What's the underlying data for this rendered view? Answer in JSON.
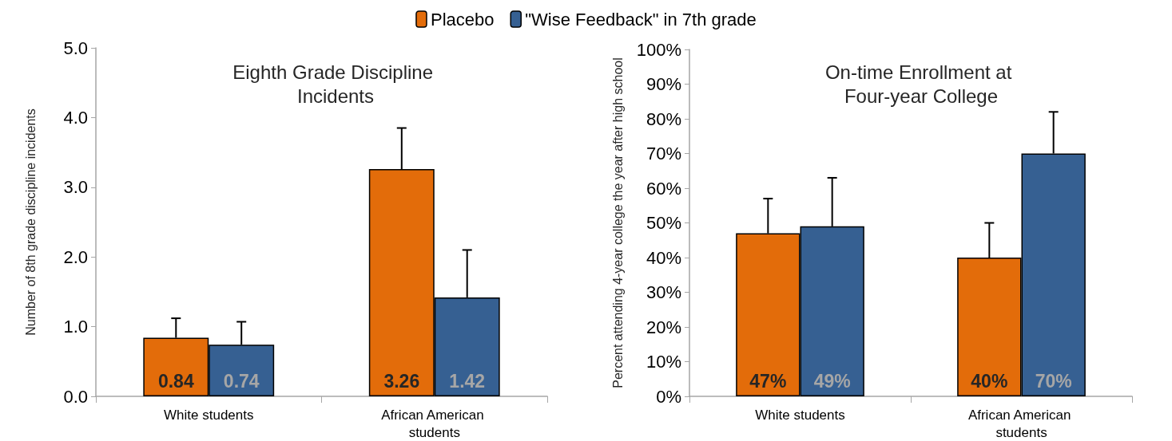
{
  "chart_data": [
    {
      "type": "bar",
      "title": "Eighth Grade Discipline Incidents",
      "ylabel": "Number of 8th grade discipline incidents",
      "categories": [
        "White students",
        "African American students"
      ],
      "series": [
        {
          "name": "Placebo",
          "color": "#e36c0a",
          "values": [
            0.84,
            3.26
          ],
          "errors": [
            [
              0.84,
              1.12
            ],
            [
              3.26,
              3.85
            ]
          ]
        },
        {
          "name": "\"Wise Feedback\" in 7th grade",
          "color": "#366092",
          "values": [
            0.74,
            1.42
          ],
          "errors": [
            [
              0.74,
              1.07
            ],
            [
              1.42,
              2.1
            ]
          ]
        }
      ],
      "data_labels": true,
      "ylim": [
        0,
        5
      ],
      "yticks": [
        {
          "value": 0,
          "label": "0.0"
        },
        {
          "value": 1,
          "label": "1.0"
        },
        {
          "value": 2,
          "label": "2.0"
        },
        {
          "value": 3,
          "label": "3.0"
        },
        {
          "value": 4,
          "label": "4.0"
        },
        {
          "value": 5,
          "label": "5.0"
        }
      ],
      "grid": false,
      "legend": "top"
    },
    {
      "type": "bar",
      "title": "On-time Enrollment at Four-year College",
      "ylabel": "Percent attending 4-year college the year after high school",
      "categories": [
        "White students",
        "African American students"
      ],
      "series": [
        {
          "color": "#e36c0a",
          "values": [
            47,
            40
          ],
          "value_labels": [
            "47%",
            "40%"
          ],
          "errors": [
            [
              47,
              57
            ],
            [
              40,
              50
            ]
          ]
        },
        {
          "color": "#366092",
          "values": [
            49,
            70
          ],
          "value_labels": [
            "49%",
            "70%"
          ],
          "errors": [
            [
              49,
              63
            ],
            [
              70,
              82
            ]
          ]
        }
      ],
      "ylim": [
        0,
        100
      ],
      "yticks": [
        {
          "value": 0,
          "label": "0%"
        },
        {
          "value": 10,
          "label": "10%"
        },
        {
          "value": 20,
          "label": "20%"
        },
        {
          "value": 30,
          "label": "30%"
        },
        {
          "value": 40,
          "label": "40%"
        },
        {
          "value": 50,
          "label": "50%"
        },
        {
          "value": 60,
          "label": "60%"
        },
        {
          "value": 70,
          "label": "70%"
        },
        {
          "value": 80,
          "label": "80%"
        },
        {
          "value": 90,
          "label": "90%"
        },
        {
          "value": 100,
          "label": "100%"
        }
      ],
      "grid": false,
      "legend": false
    }
  ]
}
